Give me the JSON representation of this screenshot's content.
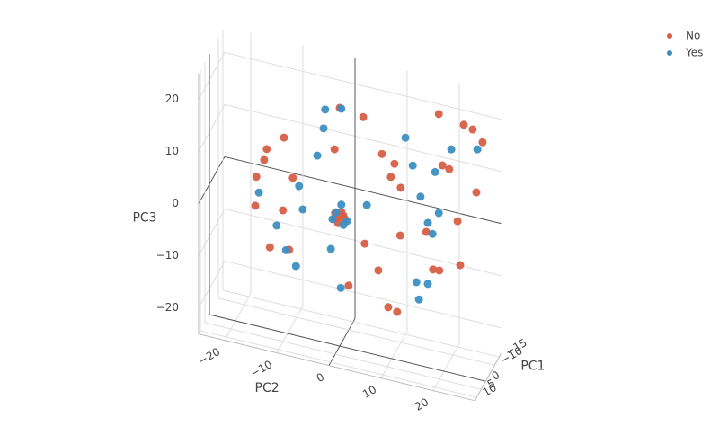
{
  "chart_data": {
    "type": "scatter3d",
    "xlabel": "PC1",
    "ylabel": "PC2",
    "zlabel": "PC3",
    "xlim": [
      -17,
      12
    ],
    "ylim": [
      -25,
      28
    ],
    "zlim": [
      -25,
      25
    ],
    "xticks": [
      {
        "value": -15,
        "label": "−15"
      },
      {
        "value": -10,
        "label": "−10"
      },
      0,
      5,
      10
    ],
    "yticks": [
      {
        "value": -20,
        "label": "−20"
      },
      {
        "value": -10,
        "label": "−10"
      },
      0,
      10,
      20
    ],
    "zticks": [
      {
        "value": -20,
        "label": "−20"
      },
      {
        "value": -10,
        "label": "−10"
      },
      0,
      10,
      20
    ],
    "grid": true,
    "legend": "top-right",
    "series": [
      {
        "name": "No",
        "color": "#d65f46",
        "x": [
          0,
          0,
          0,
          0,
          0,
          0,
          0,
          0,
          0,
          0,
          0,
          0,
          0,
          0,
          0,
          0,
          0,
          0,
          0,
          0,
          0,
          0,
          0,
          0,
          0,
          0,
          0,
          0,
          0,
          0,
          0,
          0,
          0,
          0,
          0,
          0,
          0,
          0,
          0,
          0,
          0
        ],
        "y": [
          0,
          4.5,
          19.0,
          23.8,
          25.5,
          27.4,
          -14.0,
          -10.7,
          -1.0,
          -14.5,
          8.1,
          10.5,
          19.7,
          21.0,
          -16.0,
          -9.0,
          9.8,
          11.7,
          26.2,
          -16.2,
          -10.9,
          22.6,
          11.6,
          16.6,
          4.8,
          -13.4,
          -9.7,
          23.1,
          17.9,
          19.1,
          7.4,
          1.7,
          9.3,
          11.0,
          -0.9,
          0,
          0.7,
          -1.0,
          -0.3,
          0.3,
          1.0
        ],
        "z": [
          20.7,
          20.0,
          24.1,
          23.2,
          22.7,
          20.7,
          9.4,
          12.4,
          12.5,
          7.2,
          13.8,
          12.5,
          14.4,
          14.0,
          3.6,
          5.1,
          9.8,
          8.2,
          10.8,
          -2.0,
          -1.6,
          4.4,
          -1.0,
          0.9,
          -4.2,
          -9.3,
          -8.9,
          -3.9,
          -6.0,
          -5.9,
          -8.7,
          -13.0,
          -15.3,
          -15.8,
          0.3,
          -0.2,
          0.2,
          -0.9,
          -1.5,
          0.8,
          -0.4
        ]
      },
      {
        "name": "Yes",
        "color": "#3d8fc2",
        "x": [
          0,
          0,
          0,
          0,
          0,
          0,
          0,
          0,
          0,
          0,
          0,
          0,
          0,
          0,
          0,
          0,
          0,
          0,
          0,
          0,
          0,
          0,
          0,
          0,
          0,
          0,
          0,
          0,
          0,
          0
        ],
        "y": [
          -2.8,
          0.3,
          -3.1,
          12.6,
          -4.3,
          14.0,
          18.3,
          21.4,
          26.4,
          -15.5,
          -7.8,
          15.5,
          5.2,
          19.0,
          -7.1,
          16.9,
          17.8,
          -12.1,
          -10.3,
          -8.4,
          -1.7,
          0.3,
          0.2,
          14.7,
          16.9,
          15.2,
          -1.4,
          1.4,
          -0.7,
          0.7
        ],
        "z": [
          19.7,
          20.6,
          16.0,
          18.0,
          10.5,
          13.0,
          12.8,
          17.9,
          19.1,
          0.7,
          3.8,
          7.4,
          3.3,
          5.1,
          -0.5,
          2.7,
          0.8,
          -4.8,
          -9.1,
          -11.7,
          -6.8,
          2.2,
          -13.8,
          -9.2,
          -9.0,
          -12.4,
          -1.0,
          -0.7,
          0.5,
          -1.6
        ]
      }
    ]
  }
}
